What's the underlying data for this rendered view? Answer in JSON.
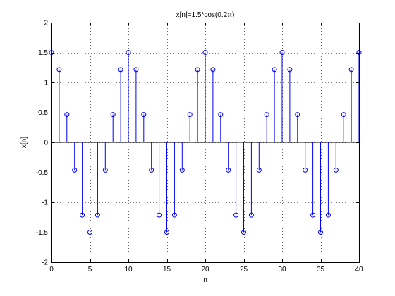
{
  "chart_data": {
    "type": "stem",
    "title": "x[n]=1.5*cos(0.2π)",
    "xlabel": "n",
    "ylabel": "x[n]",
    "xlim": [
      0,
      40
    ],
    "ylim": [
      -2,
      2
    ],
    "xticks": [
      "0",
      "5",
      "10",
      "15",
      "20",
      "25",
      "30",
      "35",
      "40"
    ],
    "yticks": [
      "-2",
      "-1.5",
      "-1",
      "-0.5",
      "0",
      "0.5",
      "1",
      "1.5",
      "2"
    ],
    "grid": "dotted",
    "series": [
      {
        "name": "x[n]",
        "color": "#0000ff",
        "x": [
          0,
          1,
          2,
          3,
          4,
          5,
          6,
          7,
          8,
          9,
          10,
          11,
          12,
          13,
          14,
          15,
          16,
          17,
          18,
          19,
          20,
          21,
          22,
          23,
          24,
          25,
          26,
          27,
          28,
          29,
          30,
          31,
          32,
          33,
          34,
          35,
          36,
          37,
          38,
          39,
          40
        ],
        "values": [
          1.5,
          1.2135,
          0.4635,
          -0.4635,
          -1.2135,
          -1.5,
          -1.2135,
          -0.4635,
          0.4635,
          1.2135,
          1.5,
          1.2135,
          0.4635,
          -0.4635,
          -1.2135,
          -1.5,
          -1.2135,
          -0.4635,
          0.4635,
          1.2135,
          1.5,
          1.2135,
          0.4635,
          -0.4635,
          -1.2135,
          -1.5,
          -1.2135,
          -0.4635,
          0.4635,
          1.2135,
          1.5,
          1.2135,
          0.4635,
          -0.4635,
          -1.2135,
          -1.5,
          -1.2135,
          -0.4635,
          0.4635,
          1.2135,
          1.5
        ]
      }
    ]
  }
}
